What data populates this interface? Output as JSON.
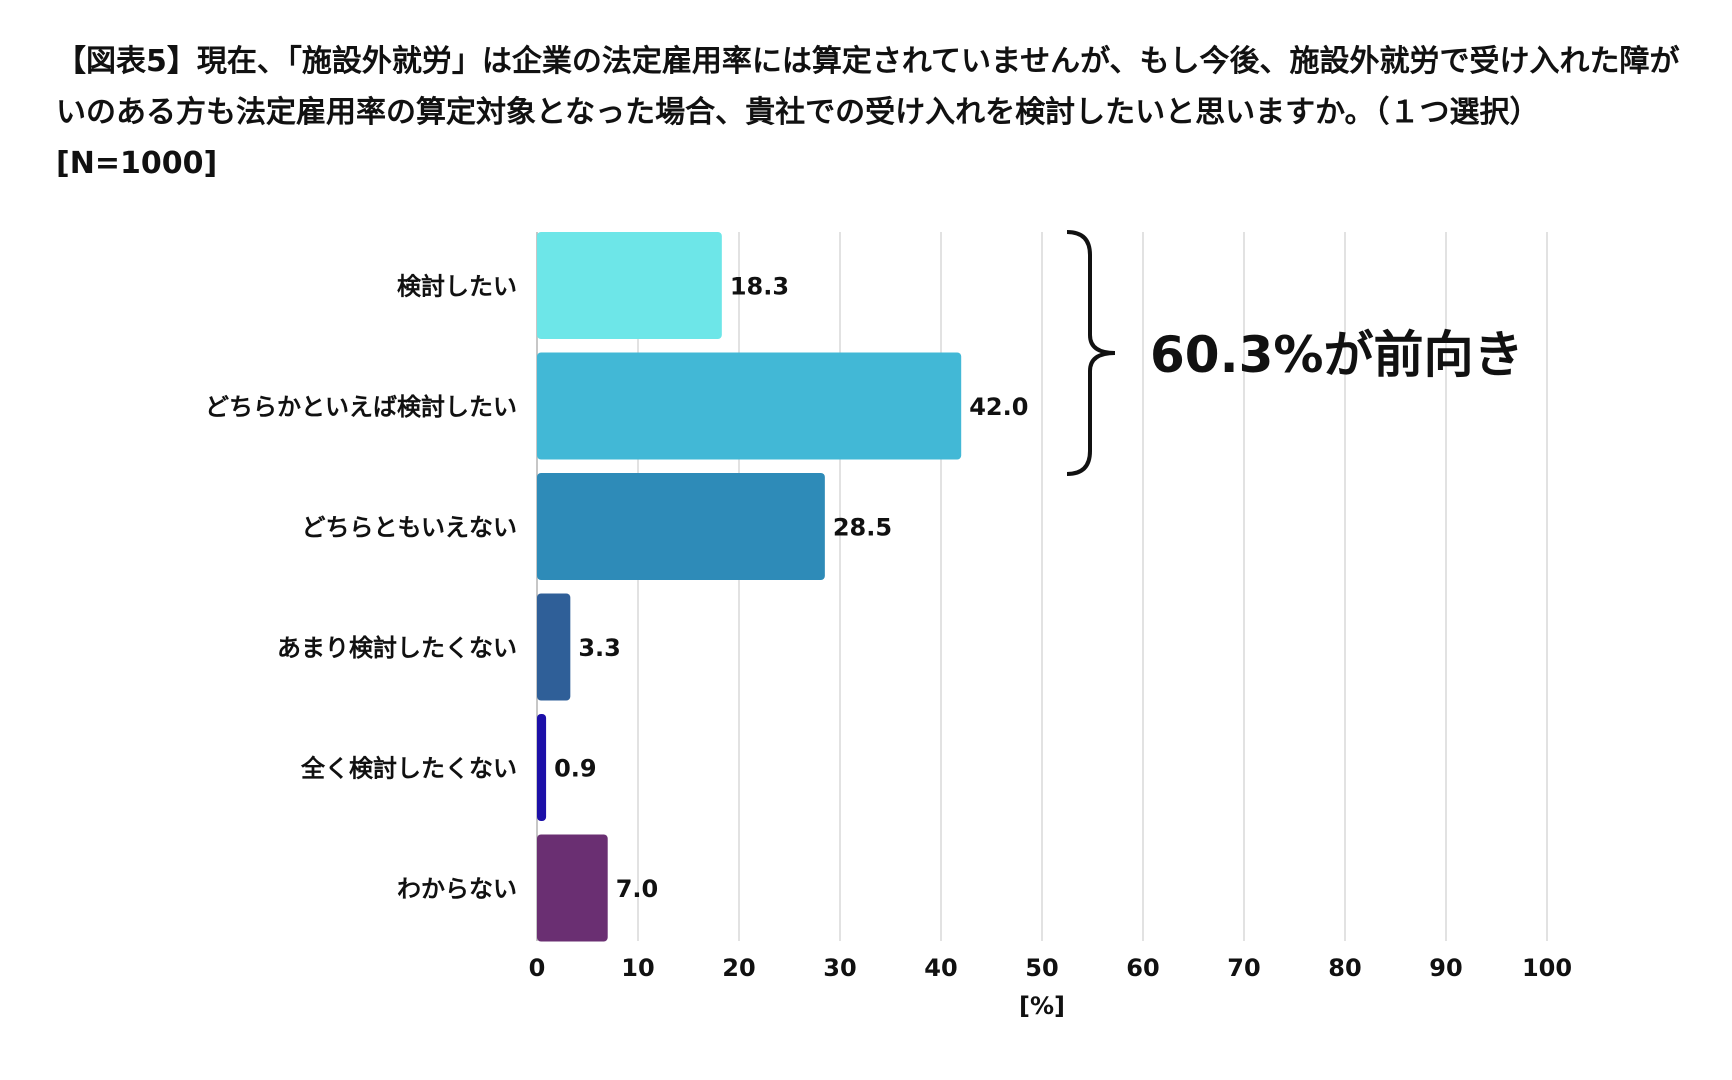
{
  "title": "【図表5】現在、「施設外就労」は企業の法定雇用率には算定されていませんが、もし今後、施設外就労で受け入れた障がいのある方も法定雇用率の算定対象となった場合、貴社での受け入れを検討したいと思いますか。（１つ選択）[N=1000]",
  "chart_data": {
    "type": "bar",
    "orientation": "horizontal",
    "categories": [
      "検討したい",
      "どちらかといえば検討したい",
      "どちらともいえない",
      "あまり検討したくない",
      "全く検討したくない",
      "わからない"
    ],
    "values": [
      18.3,
      42.0,
      28.5,
      3.3,
      0.9,
      7.0
    ],
    "value_labels": [
      "18.3",
      "42.0",
      "28.5",
      "3.3",
      "0.9",
      "7.0"
    ],
    "colors": [
      "#6de6e8",
      "#42b8d6",
      "#2e8bb8",
      "#2f5f98",
      "#1c0fa8",
      "#6a2f72"
    ],
    "xlabel": "[%]",
    "ylabel": "",
    "xlim": [
      0,
      100
    ],
    "xticks": [
      "0",
      "10",
      "20",
      "30",
      "40",
      "50",
      "60",
      "70",
      "80",
      "90",
      "100"
    ],
    "grid": true,
    "annotation": "60.3%が前向き"
  }
}
